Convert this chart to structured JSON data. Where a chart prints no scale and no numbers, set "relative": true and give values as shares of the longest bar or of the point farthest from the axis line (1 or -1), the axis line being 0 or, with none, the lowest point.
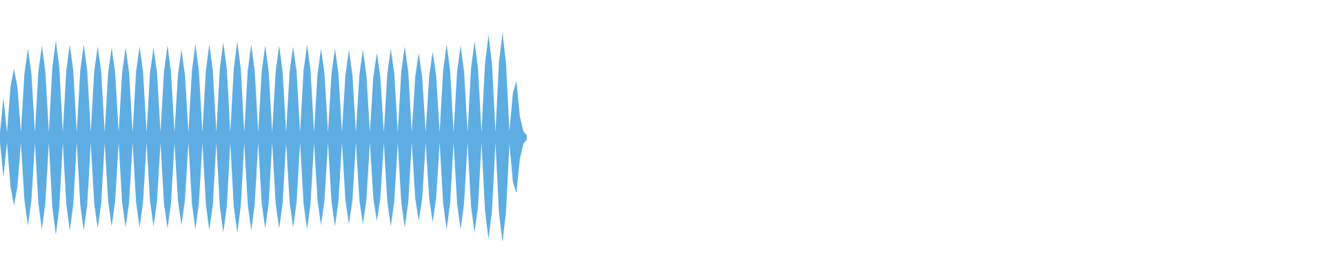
{
  "chart_data": {
    "type": "area",
    "relative": true,
    "categories": [
      null,
      null,
      null,
      null,
      null,
      null,
      null,
      null,
      null,
      null,
      null,
      null,
      null,
      null,
      null,
      null,
      null,
      null,
      null,
      null,
      null,
      null,
      null,
      null,
      null,
      null,
      null,
      null,
      null,
      null,
      null,
      null,
      null,
      null,
      null,
      null,
      null,
      null,
      null,
      null,
      null,
      null,
      null,
      null,
      null,
      null,
      null,
      null,
      null,
      null,
      null,
      null,
      null,
      null,
      null,
      null,
      null,
      null,
      null,
      null,
      null,
      null,
      null,
      null,
      null,
      null,
      null,
      null,
      null,
      null,
      null,
      null,
      null,
      null,
      null,
      null,
      null,
      null,
      null,
      null,
      null,
      null,
      null,
      null,
      null,
      null,
      null,
      null,
      null,
      null,
      null,
      null,
      null,
      null,
      null,
      null,
      null,
      null,
      null,
      null,
      null,
      null,
      null,
      null,
      null,
      null,
      null,
      null,
      null,
      null,
      null,
      null,
      null,
      null,
      null,
      null,
      null,
      null,
      null,
      null,
      null,
      null,
      null,
      null,
      null,
      null,
      null,
      null,
      null,
      null,
      null,
      null,
      null,
      null,
      null,
      null,
      null,
      null,
      null,
      null,
      null,
      null,
      null,
      null,
      null,
      null,
      null,
      null,
      null,
      null,
      null,
      null
    ],
    "series": [
      {
        "color": "#5dade2",
        "values": [
          0.05,
          0.38,
          0.05,
          0.48,
          0.66,
          0.48,
          0.05,
          0.61,
          0.85,
          0.61,
          0.05,
          0.63,
          0.88,
          0.63,
          0.05,
          0.67,
          0.93,
          0.67,
          0.05,
          0.64,
          0.89,
          0.64,
          0.05,
          0.64,
          0.89,
          0.64,
          0.05,
          0.63,
          0.87,
          0.63,
          0.05,
          0.62,
          0.86,
          0.62,
          0.05,
          0.62,
          0.86,
          0.62,
          0.05,
          0.63,
          0.87,
          0.63,
          0.05,
          0.62,
          0.86,
          0.62,
          0.05,
          0.63,
          0.88,
          0.63,
          0.05,
          0.6,
          0.84,
          0.6,
          0.05,
          0.64,
          0.89,
          0.64,
          0.05,
          0.64,
          0.89,
          0.64,
          0.05,
          0.66,
          0.91,
          0.66,
          0.05,
          0.66,
          0.92,
          0.66,
          0.05,
          0.64,
          0.89,
          0.64,
          0.05,
          0.63,
          0.88,
          0.63,
          0.05,
          0.63,
          0.88,
          0.63,
          0.05,
          0.63,
          0.87,
          0.63,
          0.05,
          0.64,
          0.89,
          0.64,
          0.05,
          0.61,
          0.85,
          0.61,
          0.05,
          0.61,
          0.85,
          0.61,
          0.05,
          0.6,
          0.84,
          0.6,
          0.05,
          0.6,
          0.84,
          0.6,
          0.05,
          0.58,
          0.81,
          0.58,
          0.05,
          0.61,
          0.85,
          0.61,
          0.05,
          0.63,
          0.87,
          0.63,
          0.05,
          0.58,
          0.81,
          0.58,
          0.05,
          0.59,
          0.82,
          0.59,
          0.05,
          0.64,
          0.89,
          0.64,
          0.05,
          0.63,
          0.88,
          0.63,
          0.05,
          0.66,
          0.92,
          0.66,
          0.05,
          0.71,
          0.98,
          0.71,
          0.05,
          0.72,
          1.0,
          0.72,
          0.06,
          0.43,
          0.54,
          0.2,
          0.06,
          0.02
        ]
      },
      {
        "color": "#5dade2",
        "values": [
          -0.05,
          -0.38,
          -0.05,
          -0.47,
          -0.65,
          -0.47,
          -0.05,
          -0.6,
          -0.84,
          -0.6,
          -0.05,
          -0.63,
          -0.88,
          -0.63,
          -0.05,
          -0.67,
          -0.93,
          -0.67,
          -0.05,
          -0.64,
          -0.89,
          -0.64,
          -0.05,
          -0.64,
          -0.89,
          -0.64,
          -0.05,
          -0.63,
          -0.87,
          -0.63,
          -0.05,
          -0.61,
          -0.85,
          -0.61,
          -0.05,
          -0.62,
          -0.86,
          -0.62,
          -0.05,
          -0.62,
          -0.86,
          -0.62,
          -0.05,
          -0.61,
          -0.85,
          -0.61,
          -0.05,
          -0.63,
          -0.87,
          -0.63,
          -0.05,
          -0.6,
          -0.84,
          -0.6,
          -0.05,
          -0.63,
          -0.88,
          -0.63,
          -0.05,
          -0.64,
          -0.89,
          -0.64,
          -0.05,
          -0.66,
          -0.91,
          -0.66,
          -0.05,
          -0.66,
          -0.91,
          -0.66,
          -0.05,
          -0.64,
          -0.89,
          -0.64,
          -0.05,
          -0.63,
          -0.87,
          -0.63,
          -0.05,
          -0.63,
          -0.87,
          -0.63,
          -0.05,
          -0.62,
          -0.86,
          -0.62,
          -0.05,
          -0.63,
          -0.88,
          -0.63,
          -0.05,
          -0.6,
          -0.84,
          -0.6,
          -0.05,
          -0.61,
          -0.85,
          -0.61,
          -0.05,
          -0.6,
          -0.83,
          -0.6,
          -0.05,
          -0.6,
          -0.83,
          -0.6,
          -0.05,
          -0.58,
          -0.8,
          -0.58,
          -0.05,
          -0.61,
          -0.85,
          -0.61,
          -0.05,
          -0.62,
          -0.86,
          -0.62,
          -0.05,
          -0.58,
          -0.8,
          -0.58,
          -0.05,
          -0.58,
          -0.81,
          -0.58,
          -0.05,
          -0.63,
          -0.88,
          -0.63,
          -0.05,
          -0.63,
          -0.88,
          -0.63,
          -0.05,
          -0.66,
          -0.91,
          -0.66,
          -0.05,
          -0.7,
          -0.97,
          -0.7,
          -0.05,
          -0.72,
          -1.0,
          -0.72,
          -0.06,
          -0.43,
          -0.53,
          -0.2,
          -0.06,
          -0.02
        ]
      }
    ]
  }
}
